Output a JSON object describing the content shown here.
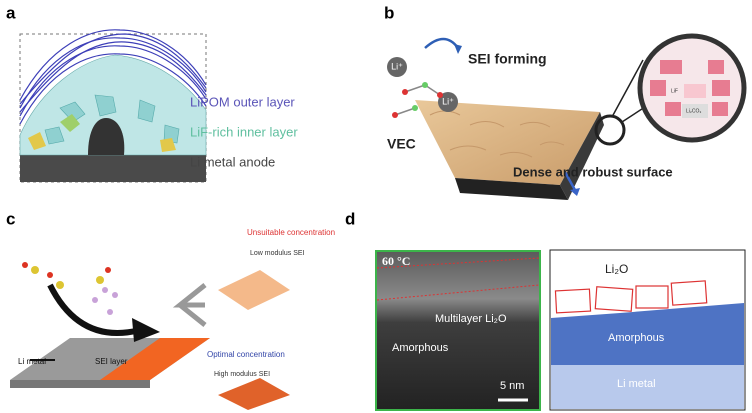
{
  "panel_a": {
    "letter": "a",
    "labels": [
      "LiPOM outer layer",
      "LiF-rich inner layer",
      "Li metal anode"
    ]
  },
  "panel_b": {
    "letter": "b",
    "li_ion_1": "Li⁺",
    "li_ion_2": "Li⁺",
    "process": "SEI forming",
    "molecule": "VEC",
    "surface": "Dense and robust surface",
    "zoom_labels": [
      "LiF",
      "Li₂CO₃"
    ]
  },
  "panel_c": {
    "letter": "c",
    "unsuitable": "Unsuitable concentration",
    "low_modulus": "Low modulus SEI",
    "optimal": "Optimal concentration",
    "high_modulus": "High modulus SEI",
    "metal": "Li metal",
    "sei": "SEI layer"
  },
  "panel_d": {
    "letter": "d",
    "temperature": "60 °C",
    "multilayer": "Multilayer Li₂O",
    "amorphous_tem": "Amorphous",
    "scale": "5 nm",
    "li2o": "Li₂O",
    "amorphous": "Amorphous",
    "metal": "Li metal"
  }
}
